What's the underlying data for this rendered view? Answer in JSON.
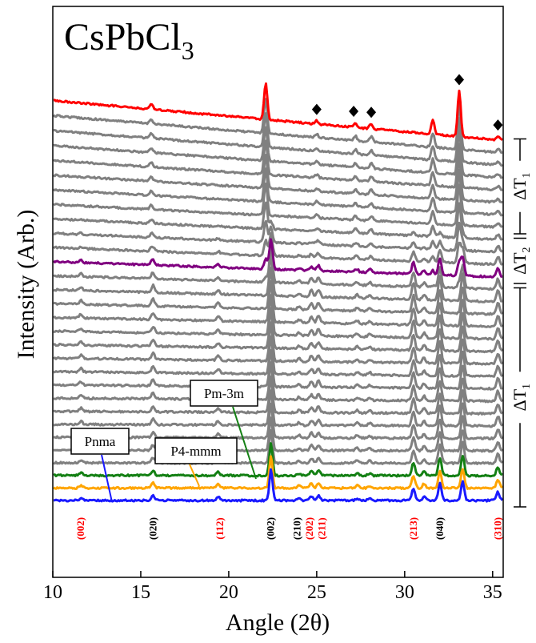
{
  "chart_data": {
    "type": "line",
    "title": "CsPbCl",
    "title_subscript": "3",
    "xlabel": "Angle (2θ)",
    "ylabel": "Intensity (Arb.)",
    "xlim": [
      10,
      35.6
    ],
    "xticks": [
      "10",
      "15",
      "20",
      "25",
      "30",
      "35"
    ],
    "num_scans": 30,
    "highlighted_series": [
      {
        "name": "Pnma",
        "index": 0,
        "color": "#1a1aff"
      },
      {
        "name": "P4-mmm",
        "index": 1,
        "color": "#ffa500"
      },
      {
        "name": "Pm-3m",
        "index": 2,
        "color": "#148014"
      },
      {
        "name": "",
        "index": 18,
        "color": "#800080"
      },
      {
        "name": "",
        "index": 29,
        "color": "#ff0000"
      }
    ],
    "other_series_color": "#808080",
    "peaks_low_temperature": [
      {
        "x": 11.6,
        "h": 0.5
      },
      {
        "x": 15.7,
        "h": 0.9
      },
      {
        "x": 19.4,
        "h": 0.6
      },
      {
        "x": 22.4,
        "h": 5.5
      },
      {
        "x": 24.0,
        "h": 0.4
      },
      {
        "x": 24.7,
        "h": 0.8
      },
      {
        "x": 25.1,
        "h": 0.9
      },
      {
        "x": 27.3,
        "h": 0.4
      },
      {
        "x": 28.0,
        "h": 0.4
      },
      {
        "x": 30.5,
        "h": 2.2
      },
      {
        "x": 31.1,
        "h": 0.7
      },
      {
        "x": 32.0,
        "h": 3.0
      },
      {
        "x": 33.3,
        "h": 3.4
      },
      {
        "x": 35.3,
        "h": 1.5
      }
    ],
    "peaks_high_temperature": [
      {
        "x": 15.6,
        "h": 0.5
      },
      {
        "x": 22.1,
        "h": 3.8
      },
      {
        "x": 25.0,
        "h": 0.35
      },
      {
        "x": 27.2,
        "h": 0.5
      },
      {
        "x": 28.1,
        "h": 0.55
      },
      {
        "x": 31.6,
        "h": 1.5
      },
      {
        "x": 33.1,
        "h": 4.8
      },
      {
        "x": 35.3,
        "h": 0.4
      }
    ],
    "diamond_markers_x": [
      25.0,
      27.1,
      28.1,
      33.1,
      35.3
    ],
    "hkl_labels": [
      {
        "text": "(002)",
        "x": 11.6,
        "color": "#ff0000"
      },
      {
        "text": "(020)",
        "x": 15.7,
        "color": "#000000"
      },
      {
        "text": "(112)",
        "x": 19.5,
        "color": "#ff0000"
      },
      {
        "text": "(002)",
        "x": 22.4,
        "color": "#000000"
      },
      {
        "text": "(210)",
        "x": 23.9,
        "color": "#000000"
      },
      {
        "text": "(202)",
        "x": 24.6,
        "color": "#ff0000"
      },
      {
        "text": "(211)",
        "x": 25.3,
        "color": "#ff0000"
      },
      {
        "text": "(213)",
        "x": 30.5,
        "color": "#ff0000"
      },
      {
        "text": "(040)",
        "x": 32.0,
        "color": "#000000"
      },
      {
        "text": "(310)",
        "x": 35.3,
        "color": "#ff0000"
      }
    ],
    "temperature_ranges": [
      {
        "label": "ΔT",
        "sub": "1",
        "from_scan": 0,
        "to_scan": 17
      },
      {
        "label": "ΔT",
        "sub": "2",
        "from_scan": 18,
        "to_scan": 21
      },
      {
        "label": "ΔT",
        "sub": "1",
        "from_scan": 22,
        "to_scan": 29
      }
    ],
    "grid": false,
    "legend": "inline phase labels"
  }
}
